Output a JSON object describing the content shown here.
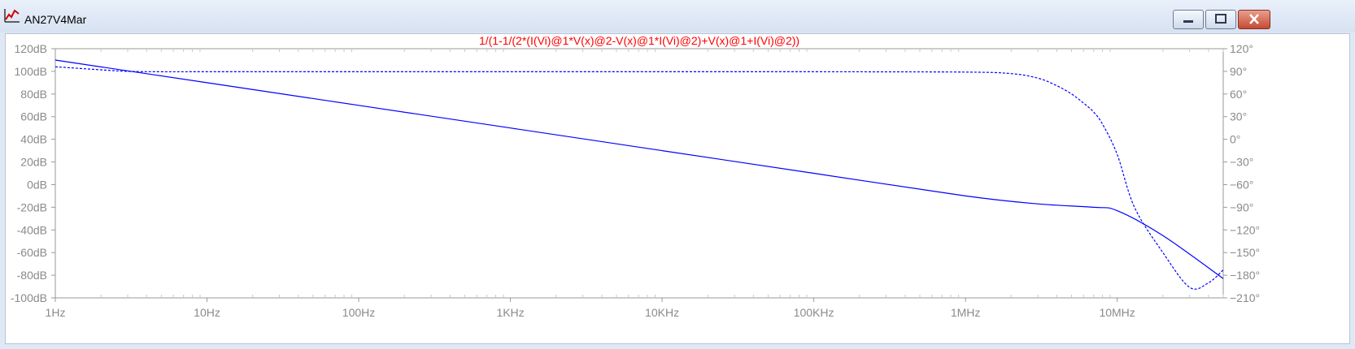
{
  "window": {
    "title": "AN27V4Mar",
    "icon": "waveform-plot-icon"
  },
  "controls": {
    "minimize_icon": "minimize-icon",
    "maximize_icon": "maximize-icon",
    "close_icon": "close-icon"
  },
  "colors": {
    "trace": "#0000ff",
    "expression": "#ff0000",
    "axis_text": "#8a8a8a",
    "grid_minor": "#c8c8c8"
  },
  "chart_data": {
    "type": "line",
    "title": "1/(1-1/(2*(I(Vi)@1*V(x)@2-V(x)@1*I(Vi)@2)+V(x)@1+I(Vi)@2))",
    "xscale": "log",
    "xlim": [
      1,
      50000000
    ],
    "ylim": [
      -100,
      120
    ],
    "y2lim": [
      -210,
      120
    ],
    "x_ticks": [
      1,
      10,
      100,
      1000,
      10000,
      100000,
      1000000,
      10000000
    ],
    "x_tick_labels": [
      "1Hz",
      "10Hz",
      "100Hz",
      "1KHz",
      "10KHz",
      "100KHz",
      "1MHz",
      "10MHz"
    ],
    "y_ticks": [
      120,
      100,
      80,
      60,
      40,
      20,
      0,
      -20,
      -40,
      -60,
      -80,
      -100
    ],
    "y_tick_labels": [
      "120dB",
      "100dB",
      "80dB",
      "60dB",
      "40dB",
      "20dB",
      "0dB",
      "-20dB",
      "-40dB",
      "-60dB",
      "-80dB",
      "-100dB"
    ],
    "y2_ticks": [
      120,
      90,
      60,
      30,
      0,
      -30,
      -60,
      -90,
      -120,
      -150,
      -180,
      -210
    ],
    "y2_tick_labels": [
      "120°",
      "90°",
      "60°",
      "30°",
      "0°",
      "−30°",
      "−60°",
      "−90°",
      "−120°",
      "−150°",
      "−180°",
      "−210°"
    ],
    "grid": "minor x ticks only",
    "series": [
      {
        "axis": "left",
        "style": "solid",
        "x": [
          1,
          10,
          100,
          1000,
          10000,
          100000,
          1000000,
          3000000,
          7000000,
          10000000,
          20000000,
          50000000
        ],
        "y": [
          110,
          90,
          70,
          50,
          30,
          10,
          -10,
          -17,
          -20,
          -23,
          -45,
          -83
        ]
      },
      {
        "axis": "right",
        "style": "dashed",
        "x": [
          1,
          2,
          3,
          5,
          10,
          100,
          1000,
          100000,
          1000000,
          2000000,
          3000000,
          4000000,
          5000000,
          6000000,
          7000000,
          8000000,
          10000000,
          13000000,
          20000000,
          30000000,
          40000000,
          50000000
        ],
        "y": [
          96,
          92,
          90,
          89.5,
          89.5,
          89.5,
          89.5,
          89.5,
          89,
          87,
          81,
          71,
          60,
          48,
          36,
          20,
          -20,
          -90,
          -150,
          -196,
          -190,
          -173
        ]
      }
    ]
  }
}
